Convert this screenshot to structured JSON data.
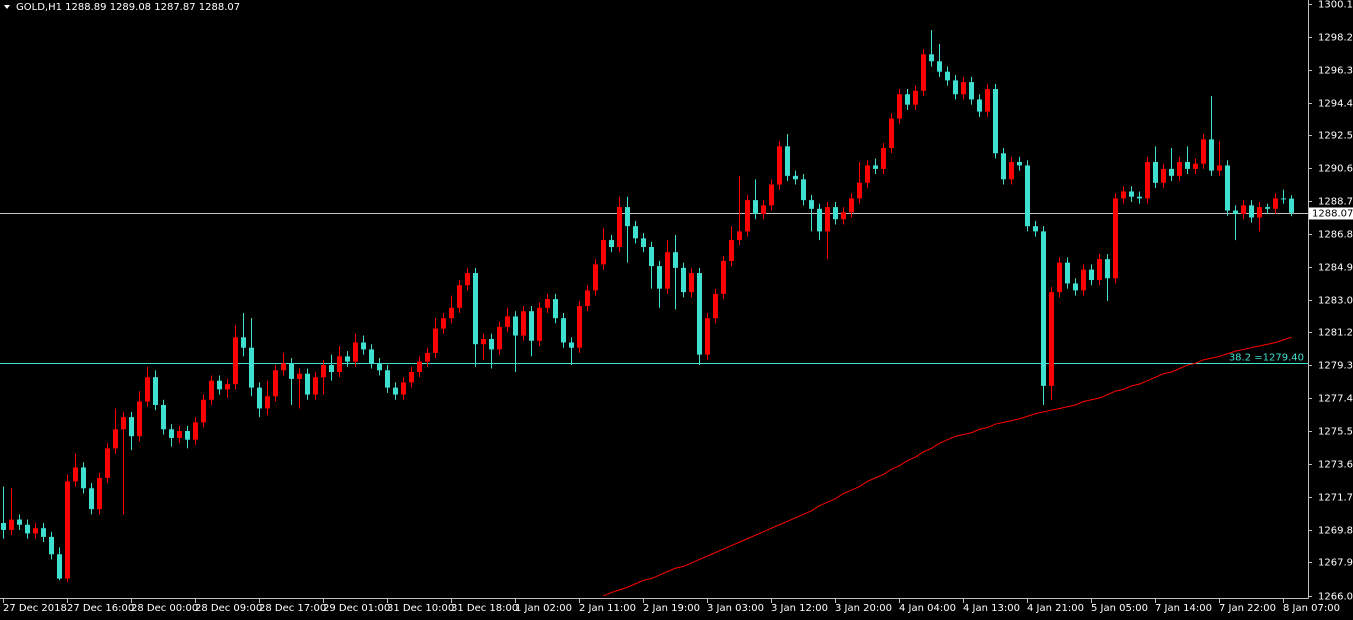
{
  "chart_data": {
    "type": "candlestick",
    "header": {
      "symbol": "GOLD,H1",
      "open": 1288.89,
      "high": 1289.08,
      "low": 1287.87,
      "close": 1288.07
    },
    "categories": [
      "27 Dec 2018",
      null,
      null,
      null,
      null,
      null,
      null,
      null,
      "27 Dec 16:00",
      null,
      null,
      null,
      null,
      null,
      null,
      null,
      "28 Dec 00:00",
      null,
      null,
      null,
      null,
      null,
      null,
      null,
      "28 Dec 09:00",
      null,
      null,
      null,
      null,
      null,
      null,
      null,
      "28 Dec 17:00",
      null,
      null,
      null,
      null,
      null,
      null,
      null,
      "29 Dec 01:00",
      null,
      null,
      null,
      null,
      null,
      null,
      null,
      "31 Dec 10:00",
      null,
      null,
      null,
      null,
      null,
      null,
      null,
      "31 Dec 18:00",
      null,
      null,
      null,
      null,
      null,
      null,
      null,
      "1 Jan 02:00",
      null,
      null,
      null,
      null,
      null,
      null,
      null,
      "2 Jan 11:00",
      null,
      null,
      null,
      null,
      null,
      null,
      null,
      "2 Jan 19:00",
      null,
      null,
      null,
      null,
      null,
      null,
      null,
      "3 Jan 03:00",
      null,
      null,
      null,
      null,
      null,
      null,
      null,
      "3 Jan 12:00",
      null,
      null,
      null,
      null,
      null,
      null,
      null,
      "3 Jan 20:00",
      null,
      null,
      null,
      null,
      null,
      null,
      null,
      "4 Jan 04:00",
      null,
      null,
      null,
      null,
      null,
      null,
      null,
      "4 Jan 13:00",
      null,
      null,
      null,
      null,
      null,
      null,
      null,
      "4 Jan 21:00",
      null,
      null,
      null,
      null,
      null,
      null,
      null,
      "5 Jan 05:00",
      null,
      null,
      null,
      null,
      null,
      null,
      null,
      "7 Jan 14:00",
      null,
      null,
      null,
      null,
      null,
      null,
      null,
      "7 Jan 22:00",
      null,
      null,
      null,
      null,
      null,
      null,
      null,
      "8 Jan 07:00",
      null
    ],
    "open": [
      1270.2,
      1269.8,
      1270.4,
      1270.1,
      1269.6,
      1269.9,
      1269.4,
      1268.4,
      1267.0,
      1272.6,
      1273.4,
      1272.2,
      1271.0,
      1272.8,
      1274.5,
      1275.6,
      1276.3,
      1275.2,
      1277.2,
      1278.6,
      1277.0,
      1275.6,
      1275.1,
      1275.5,
      1275.0,
      1276.0,
      1277.3,
      1278.4,
      1277.9,
      1278.2,
      1280.9,
      1280.3,
      1278.0,
      1276.8,
      1277.5,
      1279.0,
      1279.4,
      1278.5,
      1278.8,
      1277.6,
      1278.6,
      1279.3,
      1278.9,
      1279.8,
      1279.5,
      1280.6,
      1280.2,
      1279.4,
      1279.0,
      1278.0,
      1277.6,
      1278.3,
      1278.9,
      1279.5,
      1280.0,
      1281.4,
      1282.0,
      1282.6,
      1283.9,
      1284.6,
      1280.5,
      1280.8,
      1280.2,
      1281.5,
      1282.1,
      1281.0,
      1282.4,
      1280.7,
      1282.6,
      1283.1,
      1282.0,
      1280.6,
      1280.3,
      1282.7,
      1283.6,
      1285.1,
      1286.5,
      1286.1,
      1288.4,
      1287.3,
      1286.6,
      1286.1,
      1285.0,
      1283.7,
      1285.8,
      1284.9,
      1283.5,
      1284.6,
      1279.9,
      1282.0,
      1283.4,
      1285.3,
      1286.5,
      1287.0,
      1288.8,
      1288.0,
      1288.5,
      1289.7,
      1291.9,
      1290.2,
      1290.0,
      1288.8,
      1288.3,
      1287.0,
      1288.4,
      1287.7,
      1288.1,
      1288.9,
      1289.8,
      1290.8,
      1290.6,
      1291.8,
      1293.5,
      1294.9,
      1294.3,
      1295.1,
      1297.2,
      1296.8,
      1296.2,
      1295.7,
      1294.9,
      1295.6,
      1294.6,
      1293.9,
      1295.2,
      1291.5,
      1290.0,
      1291.0,
      1290.8,
      1287.3,
      1287.0,
      1278.1,
      1283.5,
      1285.2,
      1284.0,
      1283.6,
      1284.8,
      1284.2,
      1285.4,
      1284.3,
      1288.9,
      1289.3,
      1289.0,
      1288.9,
      1291.0,
      1289.8,
      1290.6,
      1290.2,
      1291.0,
      1290.6,
      1290.9,
      1292.3,
      1290.5,
      1290.8,
      1288.2,
      1288.0,
      1288.5,
      1287.8,
      1288.4,
      1288.3,
      1288.9,
      1288.89
    ],
    "high": [
      1272.3,
      1272.2,
      1270.7,
      1270.4,
      1270.2,
      1270.2,
      1269.7,
      1268.8,
      1273.0,
      1274.2,
      1273.7,
      1272.5,
      1273.1,
      1274.8,
      1276.8,
      1276.6,
      1276.6,
      1277.8,
      1279.2,
      1279.0,
      1277.3,
      1275.9,
      1275.8,
      1275.8,
      1276.3,
      1277.6,
      1278.7,
      1278.7,
      1278.5,
      1281.6,
      1282.3,
      1282.0,
      1278.3,
      1278.4,
      1279.3,
      1280.0,
      1279.7,
      1279.1,
      1279.1,
      1278.9,
      1279.6,
      1279.9,
      1280.4,
      1280.1,
      1281.1,
      1281.0,
      1280.5,
      1279.7,
      1279.3,
      1278.3,
      1278.6,
      1279.2,
      1279.8,
      1280.3,
      1282.0,
      1282.3,
      1283.3,
      1284.2,
      1284.9,
      1284.9,
      1281.1,
      1281.1,
      1281.8,
      1282.6,
      1282.4,
      1282.7,
      1282.7,
      1282.9,
      1283.4,
      1283.4,
      1282.3,
      1280.9,
      1283.0,
      1283.9,
      1285.4,
      1287.2,
      1286.8,
      1289.0,
      1289.0,
      1287.6,
      1286.9,
      1286.4,
      1285.3,
      1286.5,
      1286.8,
      1285.2,
      1284.9,
      1284.9,
      1282.3,
      1283.7,
      1285.6,
      1287.3,
      1290.2,
      1289.1,
      1290.0,
      1288.8,
      1290.0,
      1292.2,
      1292.6,
      1290.5,
      1290.3,
      1289.1,
      1288.6,
      1288.7,
      1288.7,
      1288.4,
      1289.2,
      1291.0,
      1291.1,
      1291.2,
      1292.1,
      1293.8,
      1295.2,
      1295.2,
      1295.4,
      1297.5,
      1298.6,
      1297.8,
      1296.5,
      1296.0,
      1295.9,
      1295.9,
      1294.9,
      1295.5,
      1295.5,
      1291.8,
      1291.3,
      1291.3,
      1291.1,
      1287.6,
      1287.3,
      1283.8,
      1285.5,
      1285.5,
      1284.3,
      1285.1,
      1285.1,
      1285.7,
      1285.7,
      1289.2,
      1289.6,
      1289.6,
      1289.3,
      1291.3,
      1291.9,
      1290.9,
      1291.8,
      1291.3,
      1291.9,
      1291.2,
      1292.6,
      1294.8,
      1292.2,
      1291.1,
      1288.5,
      1288.8,
      1288.8,
      1288.7,
      1288.6,
      1289.2,
      1289.4,
      1289.08
    ],
    "low": [
      1269.3,
      1269.5,
      1269.8,
      1269.3,
      1269.3,
      1269.1,
      1268.1,
      1266.9,
      1266.8,
      1272.3,
      1271.9,
      1270.7,
      1270.7,
      1272.5,
      1274.2,
      1270.7,
      1274.4,
      1274.9,
      1276.9,
      1276.7,
      1275.3,
      1274.6,
      1274.8,
      1274.5,
      1274.7,
      1275.7,
      1277.0,
      1277.6,
      1277.4,
      1277.9,
      1279.8,
      1277.5,
      1276.3,
      1276.4,
      1277.2,
      1278.7,
      1277.0,
      1276.8,
      1277.3,
      1277.3,
      1277.6,
      1278.4,
      1278.6,
      1279.2,
      1279.2,
      1279.9,
      1279.1,
      1278.7,
      1277.7,
      1277.3,
      1277.3,
      1278.0,
      1278.6,
      1279.2,
      1279.7,
      1281.1,
      1281.7,
      1282.3,
      1283.6,
      1279.2,
      1279.6,
      1279.1,
      1279.9,
      1281.2,
      1278.9,
      1280.7,
      1279.8,
      1280.4,
      1282.3,
      1281.7,
      1280.3,
      1279.3,
      1280.0,
      1282.4,
      1283.3,
      1284.8,
      1285.8,
      1285.8,
      1285.2,
      1286.3,
      1285.8,
      1283.7,
      1282.6,
      1283.4,
      1282.5,
      1283.2,
      1283.2,
      1279.3,
      1279.6,
      1281.7,
      1283.1,
      1285.0,
      1286.2,
      1286.7,
      1287.7,
      1287.7,
      1288.2,
      1289.4,
      1289.9,
      1289.7,
      1288.5,
      1287.0,
      1286.5,
      1285.4,
      1287.4,
      1287.4,
      1287.8,
      1288.6,
      1289.5,
      1290.3,
      1290.3,
      1291.5,
      1293.2,
      1294.0,
      1294.0,
      1294.8,
      1296.5,
      1295.9,
      1295.4,
      1294.6,
      1294.6,
      1294.3,
      1293.6,
      1293.6,
      1291.2,
      1289.7,
      1289.7,
      1290.5,
      1287.0,
      1286.7,
      1277.0,
      1277.3,
      1283.2,
      1283.7,
      1283.3,
      1283.3,
      1283.9,
      1283.9,
      1283.0,
      1284.0,
      1288.6,
      1288.7,
      1288.6,
      1288.6,
      1289.5,
      1289.5,
      1289.9,
      1289.9,
      1290.3,
      1290.3,
      1290.6,
      1290.2,
      1290.2,
      1287.9,
      1286.5,
      1287.7,
      1287.5,
      1287.0,
      1288.0,
      1288.0,
      1288.6,
      1287.87
    ],
    "close": [
      1269.8,
      1270.4,
      1270.1,
      1269.6,
      1269.9,
      1269.4,
      1268.4,
      1267.0,
      1272.6,
      1273.4,
      1272.2,
      1271.0,
      1272.8,
      1274.5,
      1275.6,
      1276.3,
      1275.2,
      1277.2,
      1278.6,
      1277.0,
      1275.6,
      1275.1,
      1275.5,
      1275.0,
      1276.0,
      1277.3,
      1278.4,
      1277.9,
      1278.2,
      1280.9,
      1280.3,
      1278.0,
      1276.8,
      1277.5,
      1279.0,
      1279.4,
      1278.5,
      1278.8,
      1277.6,
      1278.6,
      1279.3,
      1278.9,
      1279.8,
      1279.5,
      1280.6,
      1280.2,
      1279.4,
      1279.0,
      1278.0,
      1277.6,
      1278.3,
      1278.9,
      1279.5,
      1280.0,
      1281.4,
      1282.0,
      1282.6,
      1283.9,
      1284.6,
      1280.5,
      1280.8,
      1280.2,
      1281.5,
      1282.1,
      1281.0,
      1282.4,
      1280.7,
      1282.6,
      1283.1,
      1282.0,
      1280.6,
      1280.3,
      1282.7,
      1283.6,
      1285.1,
      1286.5,
      1286.1,
      1288.4,
      1287.3,
      1286.6,
      1286.1,
      1285.0,
      1283.7,
      1285.8,
      1284.9,
      1283.5,
      1284.6,
      1279.9,
      1282.0,
      1283.4,
      1285.3,
      1286.5,
      1287.0,
      1288.8,
      1288.0,
      1288.5,
      1289.7,
      1291.9,
      1290.2,
      1290.0,
      1288.8,
      1288.3,
      1287.0,
      1288.4,
      1287.7,
      1288.1,
      1288.9,
      1289.8,
      1290.8,
      1290.6,
      1291.8,
      1293.5,
      1294.9,
      1294.3,
      1295.1,
      1297.2,
      1296.8,
      1296.2,
      1295.7,
      1294.9,
      1295.6,
      1294.6,
      1293.9,
      1295.2,
      1291.5,
      1290.0,
      1291.0,
      1290.8,
      1287.3,
      1287.0,
      1278.1,
      1283.5,
      1285.2,
      1284.0,
      1283.6,
      1284.8,
      1284.2,
      1285.4,
      1284.3,
      1288.9,
      1289.3,
      1289.0,
      1288.9,
      1291.0,
      1289.8,
      1290.6,
      1290.2,
      1291.0,
      1290.6,
      1290.9,
      1292.3,
      1290.5,
      1290.8,
      1288.2,
      1288.0,
      1288.5,
      1287.8,
      1288.4,
      1288.3,
      1288.9,
      1288.89,
      1288.07
    ],
    "up_color": "#ff0000",
    "down_color": "#40e0d0",
    "ma": {
      "color": "#ff0000",
      "values": [
        null,
        null,
        null,
        null,
        null,
        null,
        null,
        null,
        null,
        null,
        null,
        null,
        null,
        null,
        null,
        null,
        null,
        null,
        null,
        null,
        null,
        null,
        null,
        null,
        null,
        null,
        null,
        null,
        null,
        null,
        null,
        null,
        null,
        null,
        null,
        null,
        null,
        null,
        null,
        null,
        null,
        null,
        null,
        null,
        null,
        null,
        null,
        null,
        null,
        null,
        null,
        null,
        null,
        null,
        null,
        null,
        null,
        null,
        null,
        null,
        null,
        null,
        null,
        null,
        null,
        null,
        null,
        null,
        null,
        null,
        null,
        null,
        null,
        null,
        null,
        1266.0,
        1266.2,
        1266.35,
        1266.5,
        1266.7,
        1266.9,
        1267.0,
        1267.2,
        1267.4,
        1267.6,
        1267.7,
        1267.9,
        1268.1,
        1268.3,
        1268.5,
        1268.7,
        1268.9,
        1269.1,
        1269.3,
        1269.5,
        1269.7,
        1269.9,
        1270.1,
        1270.3,
        1270.5,
        1270.7,
        1270.9,
        1271.2,
        1271.4,
        1271.6,
        1271.9,
        1272.1,
        1272.3,
        1272.6,
        1272.8,
        1273.0,
        1273.3,
        1273.5,
        1273.8,
        1274.0,
        1274.3,
        1274.5,
        1274.8,
        1275.0,
        1275.2,
        1275.3,
        1275.4,
        1275.6,
        1275.7,
        1275.9,
        1276.0,
        1276.1,
        1276.2,
        1276.35,
        1276.5,
        1276.6,
        1276.7,
        1276.8,
        1276.9,
        1277.0,
        1277.2,
        1277.3,
        1277.4,
        1277.6,
        1277.8,
        1277.9,
        1278.1,
        1278.2,
        1278.4,
        1278.6,
        1278.8,
        1278.9,
        1279.1,
        1279.3,
        1279.4,
        1279.6,
        1279.7,
        1279.8,
        1279.95,
        1280.1,
        1280.2,
        1280.3,
        1280.4,
        1280.5,
        1280.6,
        1280.75,
        1280.9
      ]
    },
    "ylim": [
      1265.88,
      1300.33
    ],
    "yticks": [
      {
        "value": 1300.1,
        "label": "1300.10"
      },
      {
        "value": 1298.2,
        "label": "1298.20"
      },
      {
        "value": 1296.3,
        "label": "1296.30"
      },
      {
        "value": 1294.4,
        "label": "1294.40"
      },
      1292.55,
      1290.65,
      1288.75,
      1286.85,
      1284.95,
      1283.05,
      {
        "value": 1281.2,
        "label": "1281.20"
      },
      {
        "value": 1279.3,
        "label": "1279.30"
      },
      {
        "value": 1277.4,
        "label": "1277.40"
      },
      {
        "value": 1275.5,
        "label": "1275.50"
      },
      {
        "value": 1273.6,
        "label": "1273.60"
      },
      {
        "value": 1271.7,
        "label": "1271.70"
      },
      {
        "value": 1269.8,
        "label": "1269.80"
      },
      1267.95,
      {
        "value": 1266,
        "label": "1266.00"
      }
    ],
    "price_line": 1288.07,
    "fib": {
      "value": 1279.4,
      "label": "38.2 =1279.40",
      "color": "#40e0d0"
    }
  }
}
